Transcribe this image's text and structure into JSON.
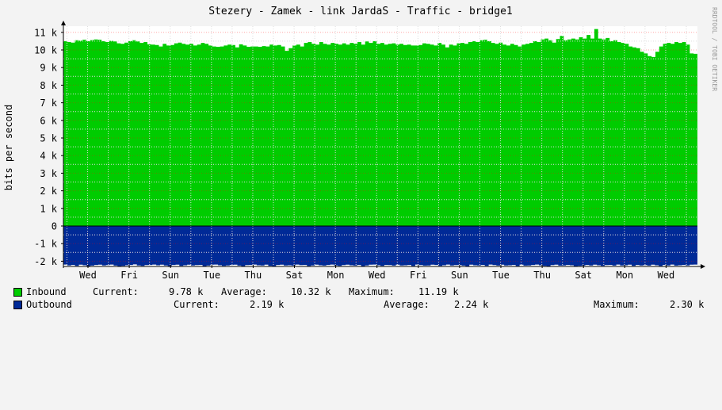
{
  "chart_data": {
    "type": "area",
    "title": "Stezery - Zamek - link JardaS - Traffic - bridge1",
    "ylabel": "bits per second",
    "watermark": "RRDTOOL / TOBI OETIKER",
    "ylim": [
      -2200,
      11500
    ],
    "y_ticks": [
      {
        "value": 11000,
        "label": "11 k"
      },
      {
        "value": 10000,
        "label": "10 k"
      },
      {
        "value": 9000,
        "label": "9 k"
      },
      {
        "value": 8000,
        "label": "8 k"
      },
      {
        "value": 7000,
        "label": "7 k"
      },
      {
        "value": 6000,
        "label": "6 k"
      },
      {
        "value": 5000,
        "label": "5 k"
      },
      {
        "value": 4000,
        "label": "4 k"
      },
      {
        "value": 3000,
        "label": "3 k"
      },
      {
        "value": 2000,
        "label": "2 k"
      },
      {
        "value": 1000,
        "label": "1 k"
      },
      {
        "value": 0,
        "label": "0"
      },
      {
        "value": -1000,
        "label": "-1 k"
      },
      {
        "value": -2000,
        "label": "-2 k"
      }
    ],
    "x_ticks": [
      "Wed",
      "Fri",
      "Sun",
      "Tue",
      "Thu",
      "Sat",
      "Mon",
      "Wed",
      "Fri",
      "Sun",
      "Tue",
      "Thu",
      "Sat",
      "Mon",
      "Wed"
    ],
    "grid": true,
    "series": [
      {
        "name": "Inbound",
        "color": "#00cc00",
        "values": [
          10500,
          10450,
          10420,
          10550,
          10530,
          10580,
          10500,
          10560,
          10600,
          10580,
          10500,
          10450,
          10520,
          10480,
          10380,
          10350,
          10420,
          10500,
          10550,
          10480,
          10400,
          10450,
          10320,
          10300,
          10280,
          10200,
          10350,
          10250,
          10280,
          10380,
          10420,
          10350,
          10300,
          10350,
          10250,
          10300,
          10400,
          10350,
          10250,
          10200,
          10180,
          10200,
          10250,
          10300,
          10280,
          10150,
          10320,
          10250,
          10180,
          10200,
          10200,
          10180,
          10220,
          10200,
          10300,
          10250,
          10280,
          10200,
          9950,
          10100,
          10250,
          10300,
          10200,
          10400,
          10450,
          10350,
          10300,
          10450,
          10350,
          10300,
          10400,
          10350,
          10300,
          10380,
          10300,
          10400,
          10350,
          10450,
          10300,
          10480,
          10400,
          10500,
          10350,
          10400,
          10300,
          10350,
          10380,
          10300,
          10350,
          10280,
          10300,
          10250,
          10250,
          10280,
          10380,
          10350,
          10300,
          10250,
          10400,
          10300,
          10150,
          10300,
          10250,
          10380,
          10400,
          10350,
          10450,
          10500,
          10450,
          10550,
          10580,
          10500,
          10400,
          10350,
          10420,
          10300,
          10250,
          10350,
          10280,
          10200,
          10300,
          10350,
          10400,
          10500,
          10450,
          10600,
          10650,
          10550,
          10420,
          10620,
          10800,
          10550,
          10600,
          10650,
          10600,
          10720,
          10650,
          10850,
          10650,
          11190,
          10650,
          10600,
          10680,
          10500,
          10550,
          10450,
          10400,
          10350,
          10200,
          10150,
          10100,
          9900,
          9800,
          9650,
          9600,
          9900,
          10200,
          10350,
          10400,
          10350,
          10450,
          10400,
          10450,
          10300,
          9800,
          9780
        ]
      },
      {
        "name": "Outbound",
        "color": "#002a97",
        "values": [
          2190,
          2240,
          2210,
          2260,
          2200,
          2230,
          2280,
          2250,
          2210,
          2200,
          2240,
          2220,
          2190,
          2250,
          2300,
          2260,
          2230,
          2210,
          2180,
          2240,
          2260,
          2220,
          2210,
          2190,
          2230,
          2200,
          2240,
          2290,
          2210,
          2200,
          2260,
          2230,
          2200,
          2240,
          2220,
          2210,
          2280,
          2250,
          2200,
          2190,
          2230,
          2260,
          2240,
          2210,
          2200,
          2250,
          2300,
          2220,
          2210,
          2190,
          2230,
          2240,
          2200,
          2260,
          2280,
          2210,
          2200,
          2240,
          2230,
          2250,
          2190,
          2220,
          2210,
          2270,
          2240,
          2200,
          2230,
          2250,
          2210,
          2190,
          2240,
          2260,
          2220,
          2200,
          2230,
          2250,
          2210,
          2280,
          2240,
          2200,
          2190,
          2230,
          2260,
          2210,
          2220,
          2250,
          2200,
          2240,
          2230,
          2210,
          2270,
          2190,
          2220,
          2250,
          2240,
          2200,
          2210,
          2260,
          2230,
          2190,
          2240,
          2220,
          2210,
          2250,
          2280,
          2200,
          2230,
          2240,
          2210,
          2260,
          2190,
          2220,
          2250,
          2200,
          2240,
          2230,
          2210,
          2270,
          2200,
          2250,
          2240,
          2210,
          2190,
          2230,
          2260,
          2280,
          2220,
          2200,
          2250,
          2240,
          2210,
          2230,
          2300,
          2260,
          2250,
          2210,
          2240,
          2200,
          2230,
          2260,
          2220,
          2210,
          2250,
          2190,
          2240,
          2230,
          2200,
          2260,
          2210,
          2240,
          2220,
          2250,
          2200,
          2230,
          2270,
          2210,
          2240,
          2190,
          2250,
          2230,
          2210,
          2240,
          2200,
          2190
        ]
      }
    ]
  },
  "legend": [
    {
      "label": "Inbound",
      "color": "#00cc00",
      "current_label": "Current:",
      "current": "9.78 k",
      "average_label": "Average:",
      "average": "10.32 k",
      "maximum_label": "Maximum:",
      "maximum": "11.19 k"
    },
    {
      "label": "Outbound",
      "color": "#002a97",
      "current_label": "Current:",
      "current": "2.19 k",
      "average_label": "Average:",
      "average": "2.24 k",
      "maximum_label": "Maximum:",
      "maximum": "2.30 k"
    }
  ]
}
